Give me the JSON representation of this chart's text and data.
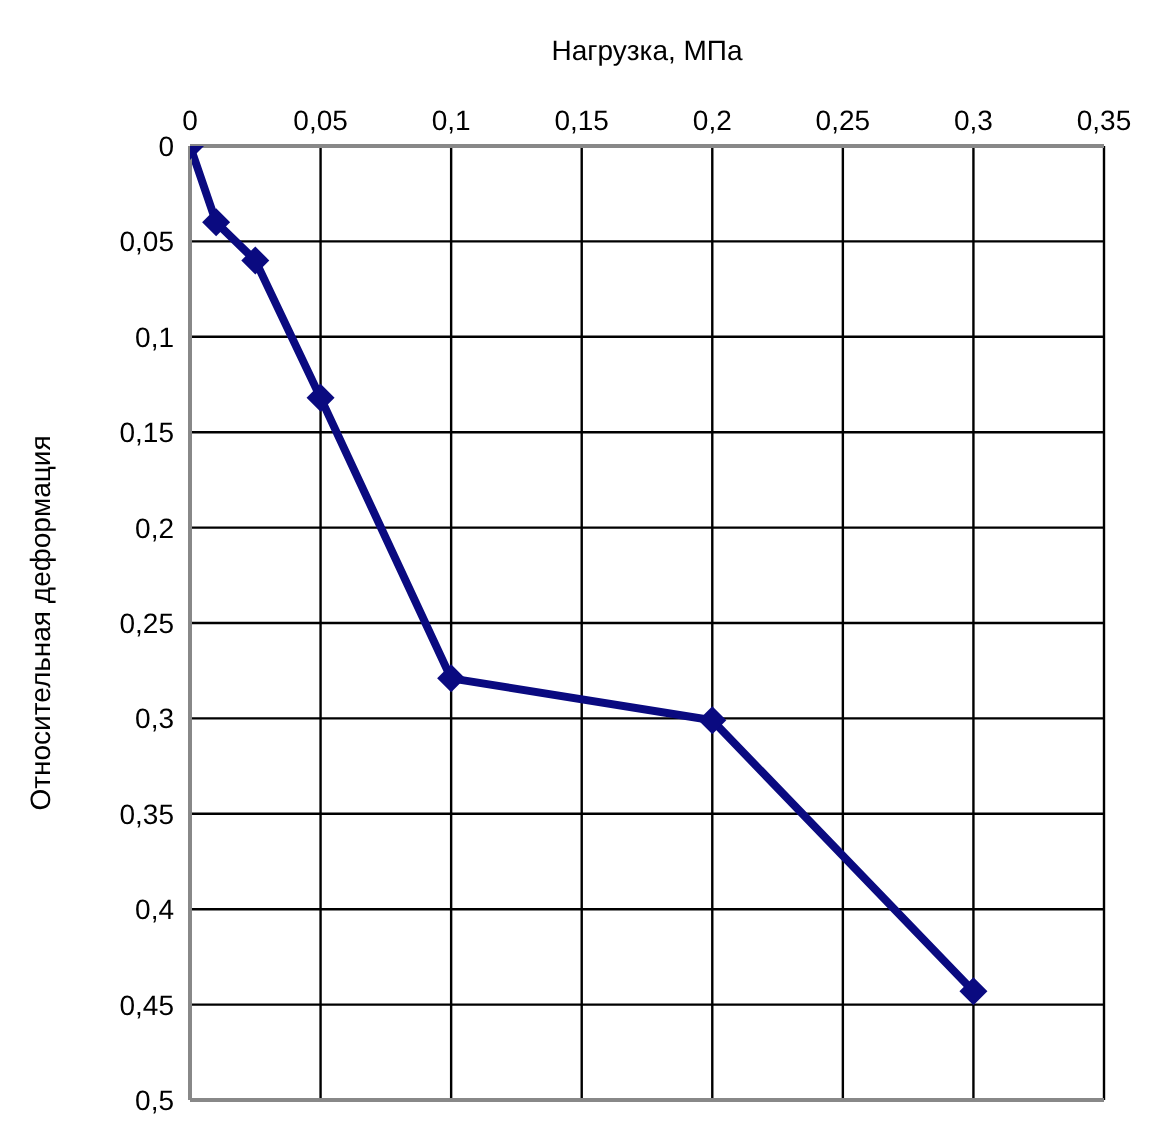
{
  "chart_data": {
    "type": "line",
    "xlabel": "Нагрузка, МПа",
    "ylabel": "Относительная деформация",
    "x": [
      0,
      0.01,
      0.025,
      0.05,
      0.1,
      0.2,
      0.3
    ],
    "series": [
      {
        "color": "#0a0a80",
        "values": [
          0,
          0.04,
          0.06,
          0.132,
          0.279,
          0.301,
          0.443
        ]
      }
    ],
    "xlim": [
      0,
      0.35
    ],
    "xticks": [
      0,
      {
        "value": 0.05,
        "label": "0,05"
      },
      {
        "value": 0.1,
        "label": "0,1"
      },
      {
        "value": 0.15,
        "label": "0,15"
      },
      {
        "value": 0.2,
        "label": "0,2"
      },
      {
        "value": 0.25,
        "label": "0,25"
      },
      {
        "value": 0.3,
        "label": "0,3"
      },
      {
        "value": 0.35,
        "label": "0,35"
      }
    ],
    "ylim": [
      0.5,
      0
    ],
    "yticks": [
      0,
      {
        "value": 0.05,
        "label": "0,05"
      },
      {
        "value": 0.1,
        "label": "0,1"
      },
      {
        "value": 0.15,
        "label": "0,15"
      },
      {
        "value": 0.2,
        "label": "0,2"
      },
      {
        "value": 0.25,
        "label": "0,25"
      },
      {
        "value": 0.3,
        "label": "0,3"
      },
      {
        "value": 0.35,
        "label": "0,35"
      },
      {
        "value": 0.4,
        "label": "0,4"
      },
      {
        "value": 0.45,
        "label": "0,45"
      },
      {
        "value": 0.5,
        "label": "0,5"
      }
    ],
    "grid": true,
    "legend": false,
    "marker": "diamond",
    "line_style": "solid"
  }
}
